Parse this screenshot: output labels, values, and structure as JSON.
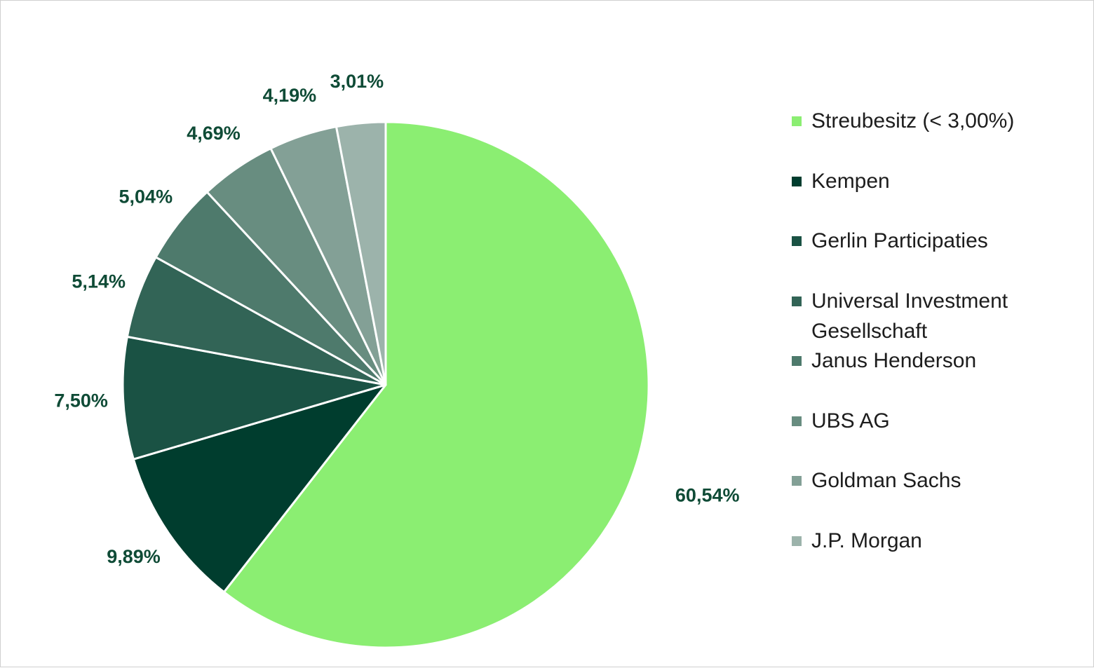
{
  "chart_data": {
    "type": "pie",
    "title": "",
    "start_angle": "12 o'clock",
    "direction": "clockwise",
    "legend_position": "right",
    "slices": [
      {
        "name": "Streubesitz (< 3,00%)",
        "value": 60.54,
        "label": "60,54%",
        "color": "#8bee72"
      },
      {
        "name": "Kempen",
        "value": 9.89,
        "label": "9,89%",
        "color": "#003d2e"
      },
      {
        "name": "Gerlin Participaties",
        "value": 7.5,
        "label": "7,50%",
        "color": "#1a5244"
      },
      {
        "name": "Universal Investment Gesellschaft",
        "value": 5.14,
        "label": "5,14%",
        "color": "#326456"
      },
      {
        "name": "Janus Henderson",
        "value": 5.04,
        "label": "5,04%",
        "color": "#4e7a6c"
      },
      {
        "name": "UBS AG",
        "value": 4.69,
        "label": "4,69%",
        "color": "#688d80"
      },
      {
        "name": "Goldman Sachs",
        "value": 4.19,
        "label": "4,19%",
        "color": "#83a096"
      },
      {
        "name": "J.P. Morgan",
        "value": 3.01,
        "label": "3,01%",
        "color": "#9cb3ab"
      }
    ]
  }
}
